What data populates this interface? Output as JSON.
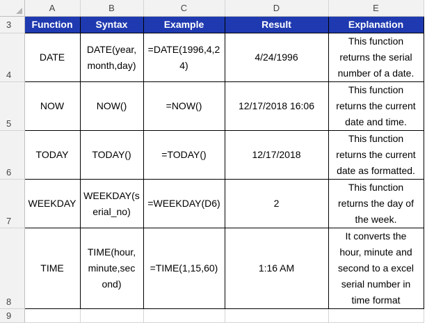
{
  "columns": [
    "A",
    "B",
    "C",
    "D",
    "E"
  ],
  "row_numbers": [
    "3",
    "4",
    "5",
    "6",
    "7",
    "8",
    "9"
  ],
  "header": {
    "function": "Function",
    "syntax": "Syntax",
    "example": "Example",
    "result": "Result",
    "explanation": "Explanation"
  },
  "rows": [
    {
      "function": "DATE",
      "syntax": "DATE(year,\nmonth,day)",
      "example": "=DATE(1996,4,2\n4)",
      "result": "4/24/1996",
      "explanation": "This function\nreturns the serial\nnumber of a date."
    },
    {
      "function": "NOW",
      "syntax": "NOW()",
      "example": "=NOW()",
      "result": "12/17/2018 16:06",
      "explanation": "This function\nreturns the current\ndate and time."
    },
    {
      "function": "TODAY",
      "syntax": "TODAY()",
      "example": "=TODAY()",
      "result": "12/17/2018",
      "explanation": "This function\nreturns the current\ndate as formatted."
    },
    {
      "function": "WEEKDAY",
      "syntax": "WEEKDAY(s\nerial_no)",
      "example": "=WEEKDAY(D6)",
      "result": "2",
      "explanation": "This function\nreturns the day of\nthe week."
    },
    {
      "function": "TIME",
      "syntax": "TIME(hour,\nminute,sec\nond)",
      "example": "=TIME(1,15,60)",
      "result": "1:16 AM",
      "explanation": "It converts the\nhour, minute and\nsecond to a excel\nserial number in\ntime format"
    }
  ]
}
